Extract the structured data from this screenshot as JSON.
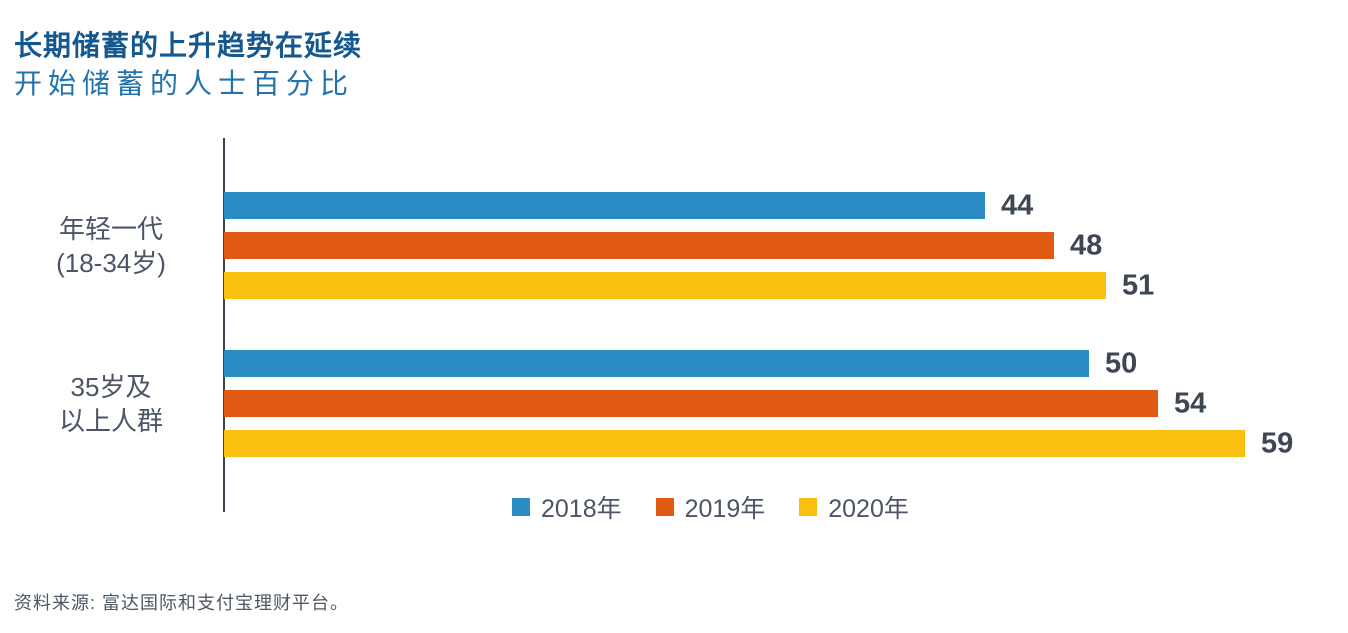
{
  "header": {
    "title": "长期储蓄的上升趋势在延续",
    "subtitle": "开始储蓄的人士百分比"
  },
  "chart_data": {
    "type": "bar",
    "orientation": "horizontal",
    "title": "长期储蓄的上升趋势在延续",
    "subtitle": "开始储蓄的人士百分比",
    "categories": [
      {
        "label": "年轻一代 (18-34岁)",
        "lines": [
          "年轻一代",
          "(18-34岁)"
        ]
      },
      {
        "label": "35岁及以上人群",
        "lines": [
          "35岁及",
          "以上人群"
        ]
      }
    ],
    "series": [
      {
        "name": "2018年",
        "color": "#2A8CC2",
        "values": [
          44,
          50
        ]
      },
      {
        "name": "2019年",
        "color": "#E05A14",
        "values": [
          48,
          54
        ]
      },
      {
        "name": "2020年",
        "color": "#F9C00F",
        "values": [
          51,
          59
        ]
      }
    ],
    "xlim": [
      0,
      65
    ],
    "value_labels": true,
    "grid": false,
    "legend_position": "bottom"
  },
  "footer": {
    "source": "资料来源: 富达国际和支付宝理财平台。"
  },
  "colors": {
    "title": "#15578F",
    "subtitle": "#2273AC",
    "text": "#4C5566",
    "value_label": "#3E4553",
    "axis": "#3A4150",
    "source": "#4E5765"
  }
}
